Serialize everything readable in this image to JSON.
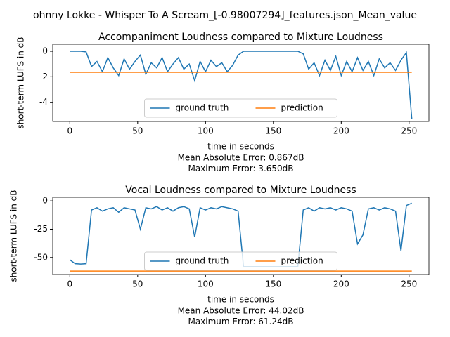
{
  "figure_title": "ohnny Lokke - Whisper To A Scream_[-0.98007294]_features.json_Mean_value",
  "chart_data": [
    {
      "type": "line",
      "title": "Accompaniment Loudness compared to Mixture Loudness",
      "xlabel": "time in seconds",
      "ylabel": "short-term LUFS in dB",
      "annotations": [
        "Mean Absolute Error: 0.867dB",
        "Maximum Error: 3.650dB"
      ],
      "x": [
        0,
        4,
        8,
        12,
        16,
        20,
        24,
        28,
        32,
        36,
        40,
        44,
        48,
        52,
        56,
        60,
        64,
        68,
        72,
        76,
        80,
        84,
        88,
        92,
        96,
        100,
        104,
        108,
        112,
        116,
        120,
        124,
        128,
        132,
        136,
        140,
        144,
        148,
        152,
        156,
        160,
        164,
        168,
        172,
        176,
        180,
        184,
        188,
        192,
        196,
        200,
        204,
        208,
        212,
        216,
        220,
        224,
        228,
        232,
        236,
        240,
        244,
        248,
        252
      ],
      "series": [
        {
          "name": "ground truth",
          "color": "#1f77b4",
          "values": [
            0,
            0,
            0,
            -0.05,
            -1.2,
            -0.8,
            -1.6,
            -0.5,
            -1.3,
            -1.9,
            -0.6,
            -1.4,
            -0.8,
            -0.3,
            -1.8,
            -0.9,
            -1.3,
            -0.5,
            -1.6,
            -1.0,
            -0.5,
            -1.4,
            -1.0,
            -2.3,
            -0.8,
            -1.6,
            -0.7,
            -1.2,
            -0.9,
            -1.6,
            -1.1,
            -0.3,
            0,
            0,
            0,
            0,
            0,
            0,
            0,
            0,
            0,
            0,
            0,
            -0.2,
            -1.4,
            -0.9,
            -1.9,
            -0.7,
            -1.5,
            -0.4,
            -1.9,
            -0.8,
            -1.6,
            -0.5,
            -1.5,
            -0.8,
            -1.9,
            -0.6,
            -1.3,
            -0.9,
            -1.5,
            -0.7,
            -0.1,
            -5.3
          ]
        },
        {
          "name": "prediction",
          "color": "#ff7f0e",
          "values": [
            -1.65,
            -1.65,
            -1.65,
            -1.65,
            -1.65,
            -1.65,
            -1.65,
            -1.65,
            -1.65,
            -1.65,
            -1.65,
            -1.65,
            -1.65,
            -1.65,
            -1.65,
            -1.65,
            -1.65,
            -1.65,
            -1.65,
            -1.65,
            -1.65,
            -1.65,
            -1.65,
            -1.65,
            -1.65,
            -1.65,
            -1.65,
            -1.65,
            -1.65,
            -1.65,
            -1.65,
            -1.65,
            -1.65,
            -1.65,
            -1.65,
            -1.65,
            -1.65,
            -1.65,
            -1.65,
            -1.65,
            -1.65,
            -1.65,
            -1.65,
            -1.65,
            -1.65,
            -1.65,
            -1.65,
            -1.65,
            -1.65,
            -1.65,
            -1.65,
            -1.65,
            -1.65,
            -1.65,
            -1.65,
            -1.65,
            -1.65,
            -1.65,
            -1.65,
            -1.65,
            -1.65,
            -1.65,
            -1.65,
            -1.65
          ]
        }
      ],
      "xlim": [
        -12.6,
        264.6
      ],
      "ylim": [
        -5.5,
        0.55
      ],
      "xticks": [
        0,
        50,
        100,
        150,
        200,
        250
      ],
      "yticks": [
        0,
        -2,
        -4
      ],
      "legend": "lower center"
    },
    {
      "type": "line",
      "title": "Vocal Loudness compared to Mixture Loudness",
      "xlabel": "time in seconds",
      "ylabel": "short-term LUFS in dB",
      "annotations": [
        "Mean Absolute Error: 44.02dB",
        "Maximum Error: 61.24dB"
      ],
      "x": [
        0,
        4,
        8,
        12,
        16,
        20,
        24,
        28,
        32,
        36,
        40,
        44,
        48,
        52,
        56,
        60,
        64,
        68,
        72,
        76,
        80,
        84,
        88,
        92,
        96,
        100,
        104,
        108,
        112,
        116,
        120,
        124,
        128,
        132,
        136,
        140,
        144,
        148,
        152,
        156,
        160,
        164,
        168,
        172,
        176,
        180,
        184,
        188,
        192,
        196,
        200,
        204,
        208,
        212,
        216,
        220,
        224,
        228,
        232,
        236,
        240,
        244,
        248,
        252
      ],
      "series": [
        {
          "name": "ground truth",
          "color": "#1f77b4",
          "values": [
            -52,
            -55.5,
            -55.8,
            -55.5,
            -8,
            -6,
            -9,
            -7,
            -6,
            -10,
            -6,
            -7,
            -8,
            -25,
            -6,
            -7,
            -5,
            -8,
            -6,
            -9,
            -6,
            -5,
            -7,
            -32,
            -6,
            -8,
            -6,
            -7,
            -5,
            -6,
            -7,
            -9,
            -58,
            -58,
            -58,
            -58,
            -58,
            -58,
            -58,
            -58,
            -58,
            -58,
            -58,
            -8,
            -6,
            -9,
            -6,
            -7,
            -6,
            -8,
            -6,
            -7,
            -9,
            -38,
            -30,
            -7,
            -6,
            -8,
            -6,
            -7,
            -9,
            -44,
            -4,
            -2
          ]
        },
        {
          "name": "prediction",
          "color": "#ff7f0e",
          "values": [
            -62,
            -62,
            -62,
            -62,
            -62,
            -62,
            -62,
            -62,
            -62,
            -62,
            -62,
            -62,
            -62,
            -62,
            -62,
            -62,
            -62,
            -62,
            -62,
            -62,
            -62,
            -62,
            -62,
            -62,
            -62,
            -62,
            -62,
            -62,
            -62,
            -62,
            -62,
            -62,
            -62,
            -62,
            -62,
            -62,
            -62,
            -62,
            -62,
            -62,
            -62,
            -62,
            -62,
            -62,
            -62,
            -62,
            -62,
            -62,
            -62,
            -62,
            -62,
            -62,
            -62,
            -62,
            -62,
            -62,
            -62,
            -62,
            -62,
            -62,
            -62,
            -62,
            -62,
            -62
          ]
        }
      ],
      "xlim": [
        -12.6,
        264.6
      ],
      "ylim": [
        -65,
        3.2
      ],
      "xticks": [
        0,
        50,
        100,
        150,
        200,
        250
      ],
      "yticks": [
        0,
        -25,
        -50
      ],
      "legend": "lower center"
    }
  ]
}
